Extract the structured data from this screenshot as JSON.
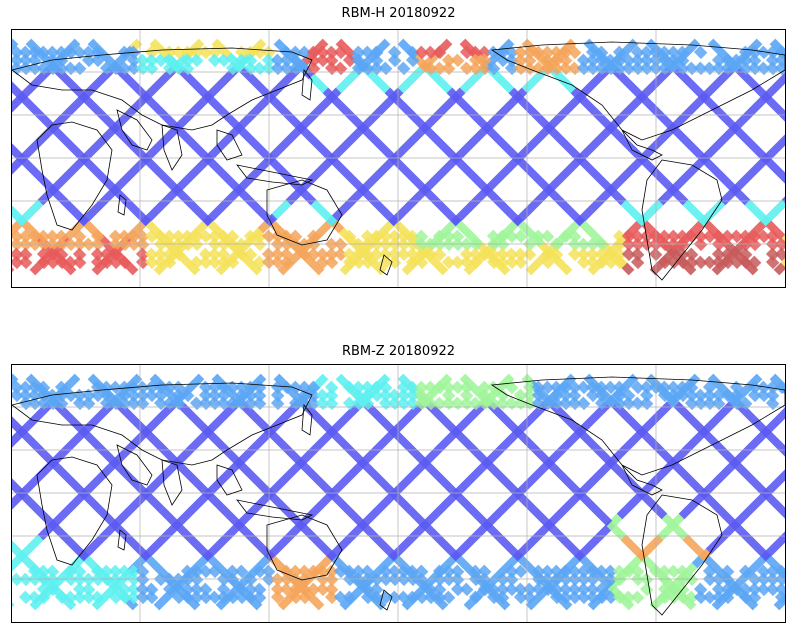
{
  "panels": [
    {
      "title": "RBM-H 20180922",
      "scheme": "h"
    },
    {
      "title": "RBM-Z 20180922",
      "scheme": "z"
    }
  ],
  "colors": {
    "low": "#5b5bf2",
    "low2": "#5aa6f5",
    "mid": "#5ef0f0",
    "mid2": "#a0f59a",
    "high": "#f5e25b",
    "high2": "#f5a55b",
    "max": "#e85b5b",
    "coast": "#000000",
    "grid": "#b0b0b0"
  }
}
